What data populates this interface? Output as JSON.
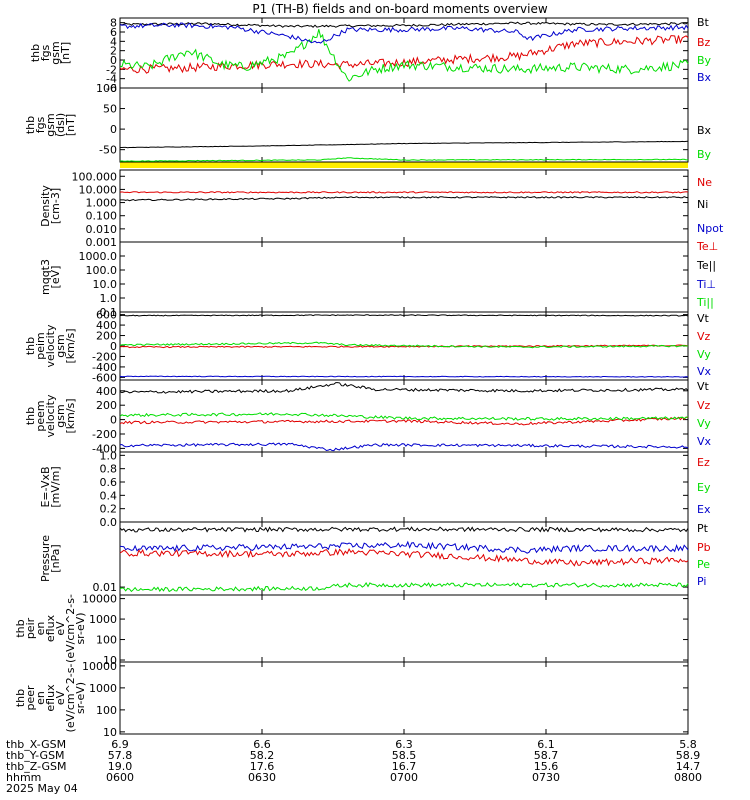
{
  "title": "P1  (TH-B) fields and on-board moments overview",
  "colors": {
    "black": "#000000",
    "red": "#e00000",
    "green": "#00dd00",
    "blue": "#0000cc",
    "yellow": "#ffee00"
  },
  "chart_data": [
    {
      "id": "fgs",
      "type": "line",
      "ylabel": [
        "thb",
        "fgs",
        "gsm",
        "[nT]"
      ],
      "ylim": [
        -6,
        9
      ],
      "log": false,
      "ticks": [
        "8",
        "6",
        "4",
        "2",
        "0",
        "-2",
        "-4",
        "-6"
      ],
      "tick_values": [
        8,
        6,
        4,
        2,
        0,
        -2,
        -4,
        -6
      ],
      "series": [
        {
          "name": "Bt",
          "color": "black",
          "points": [
            [
              0,
              7.6
            ],
            [
              0.15,
              7.8
            ],
            [
              0.3,
              7.2
            ],
            [
              0.5,
              7.4
            ],
            [
              0.7,
              7.9
            ],
            [
              0.85,
              7.6
            ],
            [
              1,
              7.8
            ]
          ],
          "noise": 0.25
        },
        {
          "name": "Bz",
          "color": "red",
          "points": [
            [
              0,
              -2
            ],
            [
              0.1,
              -1.8
            ],
            [
              0.2,
              -1.2
            ],
            [
              0.3,
              -0.8
            ],
            [
              0.4,
              -1.0
            ],
            [
              0.5,
              -0.5
            ],
            [
              0.6,
              0.2
            ],
            [
              0.7,
              0.8
            ],
            [
              0.8,
              3.5
            ],
            [
              0.9,
              4.0
            ],
            [
              1,
              4.5
            ]
          ],
          "noise": 0.9
        },
        {
          "name": "By",
          "color": "green",
          "points": [
            [
              0,
              -1
            ],
            [
              0.05,
              -1.5
            ],
            [
              0.1,
              1
            ],
            [
              0.12,
              2
            ],
            [
              0.18,
              -1
            ],
            [
              0.22,
              -1.5
            ],
            [
              0.3,
              1
            ],
            [
              0.35,
              6
            ],
            [
              0.4,
              -4
            ],
            [
              0.45,
              -2
            ],
            [
              0.5,
              -1
            ],
            [
              0.6,
              -1.5
            ],
            [
              0.7,
              -2
            ],
            [
              0.8,
              -1.5
            ],
            [
              0.9,
              -2
            ],
            [
              1,
              -1
            ]
          ],
          "noise": 1.0
        },
        {
          "name": "Bx",
          "color": "blue",
          "points": [
            [
              0,
              7.2
            ],
            [
              0.1,
              7.5
            ],
            [
              0.2,
              7.0
            ],
            [
              0.3,
              5.0
            ],
            [
              0.35,
              3.5
            ],
            [
              0.4,
              6.5
            ],
            [
              0.5,
              6.5
            ],
            [
              0.6,
              6.8
            ],
            [
              0.7,
              6.0
            ],
            [
              0.72,
              4.5
            ],
            [
              0.8,
              6.5
            ],
            [
              0.9,
              6.8
            ],
            [
              1,
              7.0
            ]
          ],
          "noise": 0.5
        }
      ]
    },
    {
      "id": "fgs_dsl",
      "type": "line",
      "ylabel": [
        "thb",
        "fgs",
        "gsm",
        "(dsl)",
        "[nT]"
      ],
      "ylim": [
        -80,
        100
      ],
      "log": false,
      "ticks": [
        "100",
        "50",
        "0",
        "-50"
      ],
      "tick_values": [
        100,
        50,
        0,
        -50
      ],
      "series": [
        {
          "name": "Bx",
          "color": "black",
          "points": [
            [
              0,
              -45
            ],
            [
              0.3,
              -40
            ],
            [
              0.5,
              -35
            ],
            [
              0.8,
              -32
            ],
            [
              1,
              -30
            ]
          ],
          "noise": 0.5
        },
        {
          "name": "By",
          "color": "green",
          "points": [
            [
              0,
              -78
            ],
            [
              0.35,
              -75
            ],
            [
              0.4,
              -70
            ],
            [
              0.5,
              -75
            ],
            [
              1,
              -74
            ]
          ],
          "noise": 0.8
        }
      ]
    },
    {
      "id": "density",
      "type": "line",
      "ylabel": [
        "Density",
        "[cm-3]"
      ],
      "ylim": [
        0.001,
        300
      ],
      "log": true,
      "ticks": [
        "100.000",
        "10.000",
        "1.000",
        "0.100",
        "0.010",
        "0.001"
      ],
      "tick_values": [
        100,
        10,
        1,
        0.1,
        0.01,
        0.001
      ],
      "series": [
        {
          "name": "Ne",
          "color": "red",
          "points": [
            [
              0,
              6.0
            ],
            [
              1,
              6.0
            ]
          ],
          "noise": 0.05
        },
        {
          "name": "Ni",
          "color": "black",
          "points": [
            [
              0,
              1.5
            ],
            [
              0.3,
              2.0
            ],
            [
              0.4,
              2.5
            ],
            [
              1,
              2.5
            ]
          ],
          "noise": 0.05
        },
        {
          "name": "Npot",
          "color": "blue",
          "points": [],
          "noise": 0
        }
      ]
    },
    {
      "id": "temp",
      "type": "line",
      "ylabel": [
        "mqqt3",
        "[eV]"
      ],
      "ylim": [
        0.1,
        10000
      ],
      "log": true,
      "ticks": [
        "1000.0",
        "100.0",
        "10.0",
        "1.0",
        "0.1"
      ],
      "tick_values": [
        1000,
        100,
        10,
        1,
        0.1
      ],
      "series": [
        {
          "name": "Te⊥",
          "color": "red",
          "points": [],
          "noise": 0
        },
        {
          "name": "Te||",
          "color": "black",
          "points": [],
          "noise": 0
        },
        {
          "name": "Ti⊥",
          "color": "blue",
          "points": [],
          "noise": 0
        },
        {
          "name": "Ti||",
          "color": "green",
          "points": [],
          "noise": 0
        }
      ]
    },
    {
      "id": "peim",
      "type": "line",
      "ylabel": [
        "thb",
        "peim",
        "velocity",
        "gsm",
        "[km/s]"
      ],
      "ylim": [
        -650,
        650
      ],
      "log": false,
      "ticks": [
        "600",
        "400",
        "200",
        "0",
        "-200",
        "-400",
        "-600"
      ],
      "tick_values": [
        600,
        400,
        200,
        0,
        -200,
        -400,
        -600
      ],
      "series": [
        {
          "name": "Vt",
          "color": "black",
          "points": [
            [
              0,
              580
            ],
            [
              0.4,
              590
            ],
            [
              1,
              580
            ]
          ],
          "noise": 8
        },
        {
          "name": "Vz",
          "color": "red",
          "points": [
            [
              0,
              -20
            ],
            [
              0.5,
              -10
            ],
            [
              1,
              10
            ]
          ],
          "noise": 12
        },
        {
          "name": "Vy",
          "color": "green",
          "points": [
            [
              0,
              20
            ],
            [
              0.35,
              60
            ],
            [
              0.4,
              20
            ],
            [
              0.7,
              -20
            ],
            [
              1,
              0
            ]
          ],
          "noise": 15
        },
        {
          "name": "Vx",
          "color": "blue",
          "points": [
            [
              0,
              -580
            ],
            [
              1,
              -590
            ]
          ],
          "noise": 6
        }
      ]
    },
    {
      "id": "peem",
      "type": "line",
      "ylabel": [
        "thb",
        "peem",
        "velocity",
        "gsm",
        "[km/s]"
      ],
      "ylim": [
        -450,
        550
      ],
      "log": false,
      "ticks": [
        "400",
        "200",
        "0",
        "-200",
        "-400"
      ],
      "tick_values": [
        400,
        200,
        0,
        -200,
        -400
      ],
      "series": [
        {
          "name": "Vt",
          "color": "black",
          "points": [
            [
              0,
              380
            ],
            [
              0.3,
              400
            ],
            [
              0.38,
              500
            ],
            [
              0.45,
              420
            ],
            [
              0.7,
              400
            ],
            [
              1,
              420
            ]
          ],
          "noise": 20
        },
        {
          "name": "Vz",
          "color": "red",
          "points": [
            [
              0,
              -40
            ],
            [
              0.5,
              -20
            ],
            [
              0.7,
              -60
            ],
            [
              1,
              20
            ]
          ],
          "noise": 18
        },
        {
          "name": "Vy",
          "color": "green",
          "points": [
            [
              0,
              60
            ],
            [
              0.3,
              80
            ],
            [
              0.5,
              20
            ],
            [
              0.75,
              10
            ],
            [
              1,
              20
            ]
          ],
          "noise": 20
        },
        {
          "name": "Vx",
          "color": "blue",
          "points": [
            [
              0,
              -360
            ],
            [
              0.3,
              -340
            ],
            [
              0.37,
              -420
            ],
            [
              0.45,
              -350
            ],
            [
              0.7,
              -360
            ],
            [
              1,
              -380
            ]
          ],
          "noise": 18
        }
      ]
    },
    {
      "id": "efield",
      "type": "line",
      "ylabel": [
        "E=-VxB",
        "[mV/m]"
      ],
      "ylim": [
        0,
        1.05
      ],
      "log": false,
      "ticks": [
        "1.0",
        "0.8",
        "0.6",
        "0.4",
        "0.2",
        "0.0"
      ],
      "tick_values": [
        1,
        0.8,
        0.6,
        0.4,
        0.2,
        0
      ],
      "series": [
        {
          "name": "Ez",
          "color": "red",
          "points": [],
          "noise": 0
        },
        {
          "name": "Ey",
          "color": "green",
          "points": [],
          "noise": 0
        },
        {
          "name": "Ex",
          "color": "blue",
          "points": [],
          "noise": 0
        }
      ]
    },
    {
      "id": "pressure",
      "type": "line",
      "ylabel": [
        "Pressure",
        "[nPa]"
      ],
      "ylim": [
        0.005,
        3
      ],
      "log": true,
      "ticks": [
        "0.01"
      ],
      "tick_values": [
        0.01
      ],
      "series": [
        {
          "name": "Pt",
          "color": "black",
          "points": [
            [
              0,
              1.5
            ],
            [
              0.5,
              1.6
            ],
            [
              1,
              1.5
            ]
          ],
          "noise": 0.08
        },
        {
          "name": "Pb",
          "color": "red",
          "points": [
            [
              0,
              0.2
            ],
            [
              0.3,
              0.18
            ],
            [
              0.4,
              0.22
            ],
            [
              0.72,
              0.1
            ],
            [
              0.8,
              0.08
            ],
            [
              1,
              0.11
            ]
          ],
          "noise": 0.12
        },
        {
          "name": "Pe",
          "color": "green",
          "points": [
            [
              0,
              0.008
            ],
            [
              0.35,
              0.009
            ],
            [
              0.4,
              0.012
            ],
            [
              1,
              0.012
            ]
          ],
          "noise": 0.08
        },
        {
          "name": "Pi",
          "color": "blue",
          "points": [
            [
              0,
              0.28
            ],
            [
              0.35,
              0.35
            ],
            [
              0.5,
              0.4
            ],
            [
              0.72,
              0.25
            ],
            [
              0.8,
              0.3
            ],
            [
              1,
              0.3
            ]
          ],
          "noise": 0.12
        }
      ]
    },
    {
      "id": "peir",
      "type": "spectrogram",
      "ylabel": [
        "thb",
        "peir",
        "en",
        "eflux",
        "eV",
        "(eV/cm^2-s-",
        "sr-eV)"
      ],
      "ylim": [
        8,
        15000
      ],
      "log": true,
      "ticks": [
        "10000",
        "1000",
        "100",
        "10"
      ],
      "tick_values": [
        10000,
        1000,
        100,
        10
      ],
      "series": []
    },
    {
      "id": "peer",
      "type": "spectrogram",
      "ylabel": [
        "thb",
        "peer",
        "en",
        "eflux",
        "eV",
        "(eV/cm^2-s-",
        "sr-eV)"
      ],
      "ylim": [
        8,
        15000
      ],
      "log": true,
      "ticks": [
        "10000",
        "1000",
        "100",
        "10"
      ],
      "tick_values": [
        10000,
        1000,
        100,
        10
      ],
      "series": []
    }
  ],
  "x_axis": {
    "rows": [
      {
        "label": "thb_X-GSM",
        "values": [
          "6.9",
          "6.6",
          "6.3",
          "6.1",
          "5.8"
        ]
      },
      {
        "label": "thb_Y-GSM",
        "values": [
          "57.8",
          "58.2",
          "58.5",
          "58.7",
          "58.9"
        ]
      },
      {
        "label": "thb_Z-GSM",
        "values": [
          "19.0",
          "17.6",
          "16.7",
          "15.6",
          "14.7"
        ]
      },
      {
        "label": "hhmm",
        "values": [
          "0600",
          "0630",
          "0700",
          "0730",
          "0800"
        ]
      }
    ],
    "date": "2025 May 04"
  }
}
